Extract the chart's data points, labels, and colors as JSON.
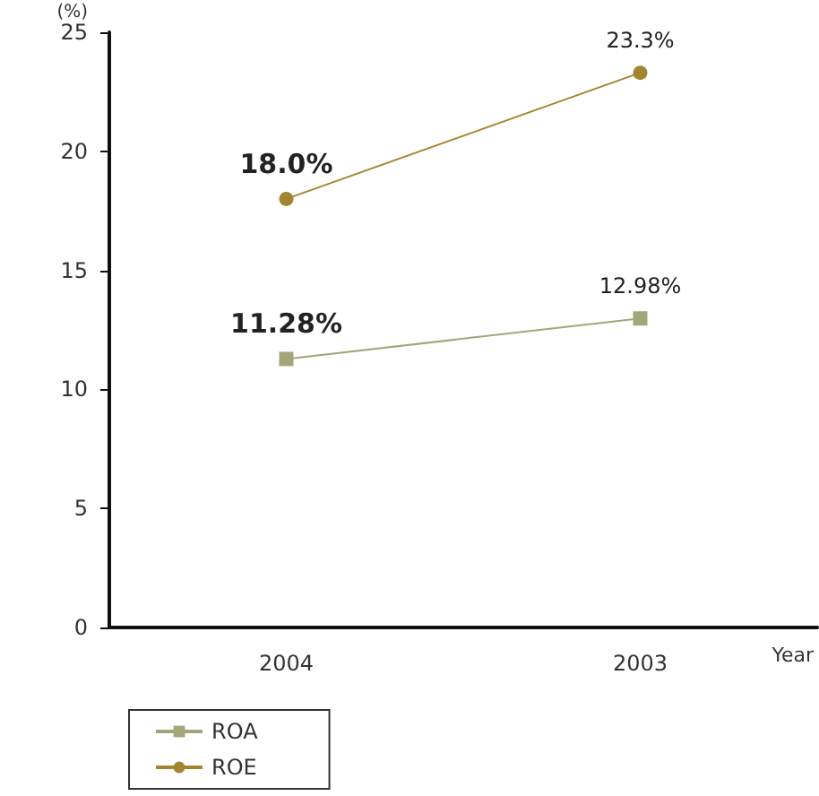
{
  "chart_data": {
    "type": "line",
    "ylabel": "(%)",
    "xlabel": "Year",
    "categories": [
      "2004",
      "2003"
    ],
    "series": [
      {
        "name": "ROA",
        "color": "#a3a679",
        "marker": "square",
        "values": [
          11.28,
          12.98
        ],
        "value_labels": [
          "11.28%",
          "12.98%"
        ]
      },
      {
        "name": "ROE",
        "color": "#a38530",
        "marker": "circle",
        "values": [
          18.0,
          23.3
        ],
        "value_labels": [
          "18.0%",
          "23.3%"
        ]
      }
    ],
    "ylim": [
      0,
      25
    ],
    "yticks": [
      0,
      5,
      10,
      15,
      20,
      25
    ],
    "grid": false,
    "legend": "bottom left"
  }
}
